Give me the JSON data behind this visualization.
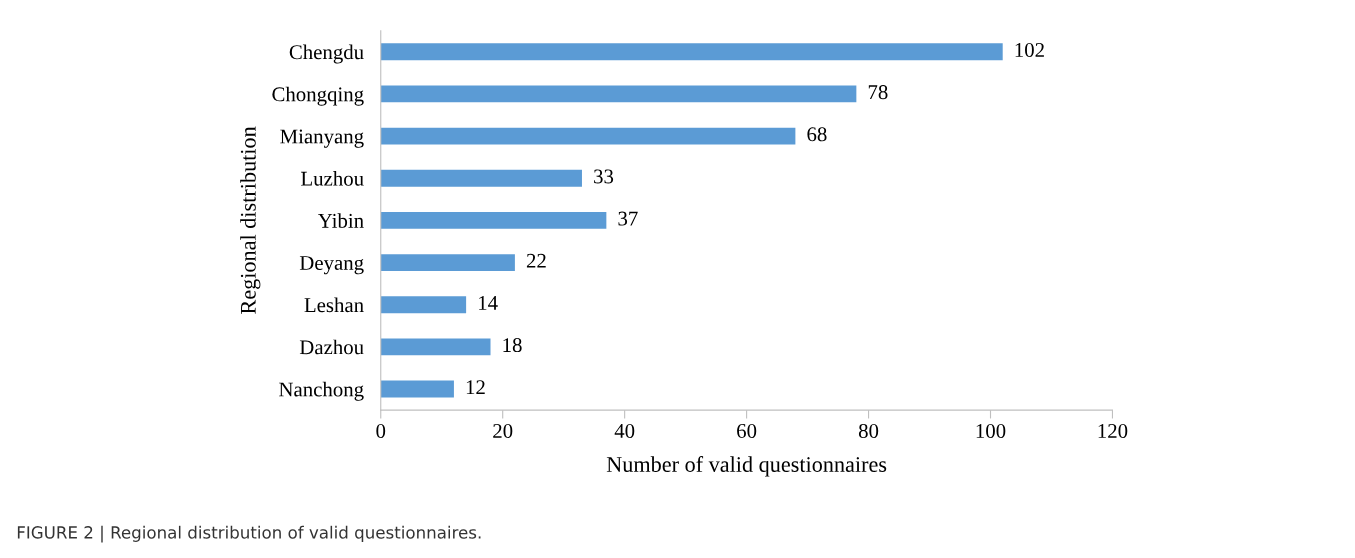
{
  "chart_data": {
    "type": "bar",
    "orientation": "horizontal",
    "categories": [
      "Chengdu",
      "Chongqing",
      "Mianyang",
      "Luzhou",
      "Yibin",
      "Deyang",
      "Leshan",
      "Dazhou",
      "Nanchong"
    ],
    "values": [
      102,
      78,
      68,
      33,
      37,
      22,
      14,
      18,
      12
    ],
    "color": "#5b9bd5",
    "xlim": [
      0,
      120
    ],
    "xticks": [
      0,
      20,
      40,
      60,
      80,
      100,
      120
    ],
    "xlabel": "Number of valid questionnaires",
    "ylabel": "Regional distribution",
    "data_labels": true,
    "grid": false,
    "legend": false,
    "annotations": [
      "FIGURE 2 | Regional distribution of valid questionnaires."
    ]
  }
}
